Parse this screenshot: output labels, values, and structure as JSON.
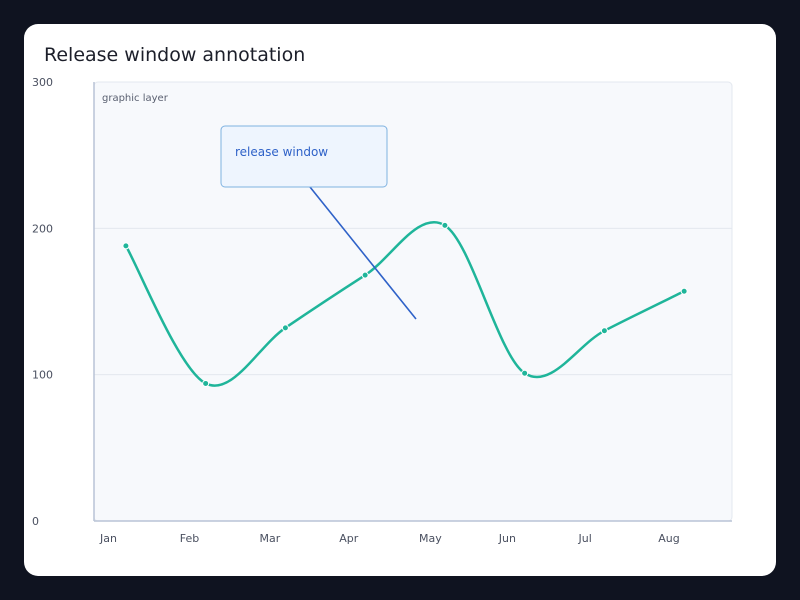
{
  "chart_data": {
    "type": "line",
    "title": "Release window annotation",
    "categories": [
      "Jan",
      "Feb",
      "Mar",
      "Apr",
      "May",
      "Jun",
      "Jul",
      "Aug"
    ],
    "ylim": [
      0,
      300
    ],
    "yticks": [
      0,
      100,
      200,
      300
    ],
    "series": [
      {
        "x": [
          0.4,
          1.4,
          2.4,
          3.4,
          4.4,
          5.4,
          6.4,
          7.4
        ],
        "values": [
          188,
          94,
          132,
          168,
          202,
          101,
          130,
          157
        ]
      }
    ],
    "grid": true,
    "layer_label": "graphic layer",
    "annotation": {
      "text": "release window",
      "target_x": 4.0,
      "target_y": 138
    },
    "colors": {
      "line": "#1fb59a",
      "annotation": "#2f62c8",
      "plot_bg": "#f7f9fc",
      "grid": "#e3e8ef"
    }
  }
}
